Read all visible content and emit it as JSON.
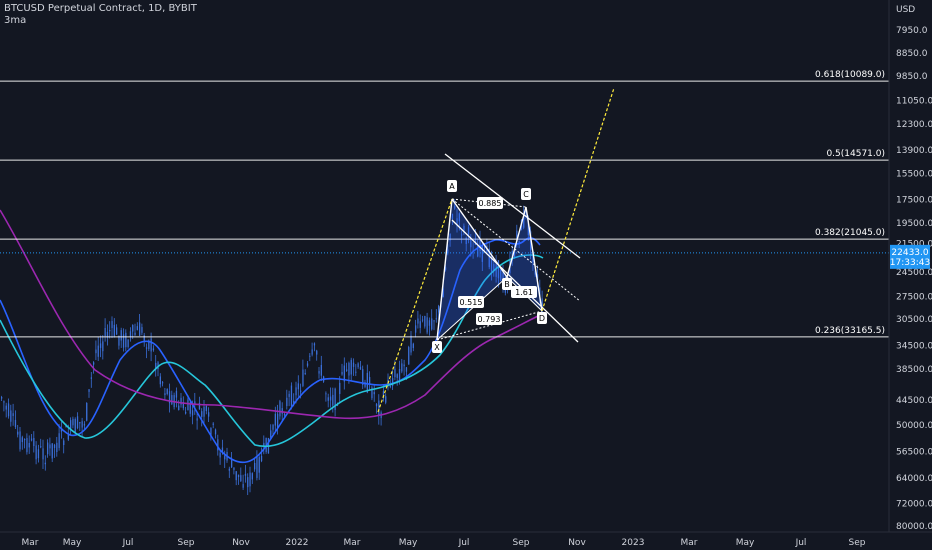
{
  "header": {
    "symbol_line": "BTCUSD Perpetual Contract, 1D, BYBIT",
    "indicator_line": "3ma"
  },
  "colors": {
    "background": "#131722",
    "axis_text": "#d1d4dc",
    "candle_up": "#3b6fd8",
    "ma_fast": "#2962ff",
    "ma_mid": "#26c6da",
    "ma_slow": "#9c27b0",
    "harmonic": "#ffffff",
    "trend_line": "#ffeb3b",
    "price_line": "#2196f3"
  },
  "chart_data": {
    "type": "line",
    "title": "BTCUSD Perpetual Contract, 1D, BYBIT",
    "y_axis": {
      "unit": "USD",
      "scale": "log",
      "inverted": true,
      "ticks": [
        "7950.0",
        "8850.0",
        "9850.0",
        "11050.0",
        "12300.0",
        "13900.0",
        "15500.0",
        "17500.0",
        "19500.0",
        "21500.0",
        "24500.0",
        "27500.0",
        "30500.0",
        "34500.0",
        "38500.0",
        "44500.0",
        "50000.0",
        "56500.0",
        "64000.0",
        "72000.0",
        "80000.0"
      ]
    },
    "x_axis": {
      "ticks": [
        "Mar",
        "May",
        "Jul",
        "Sep",
        "Nov",
        "2022",
        "Mar",
        "May",
        "Jul",
        "Sep",
        "Nov",
        "2023",
        "Mar",
        "May",
        "Jul",
        "Sep"
      ]
    },
    "current_price": {
      "value": "22433.0",
      "countdown": "17:33:43"
    },
    "fib_levels": [
      {
        "label": "0.618(10089.0)",
        "value": 10089.0
      },
      {
        "label": "0.5(14571.0)",
        "value": 14571.0
      },
      {
        "label": "0.382(21045.0)",
        "value": 21045.0
      },
      {
        "label": "0.236(33165.5)",
        "value": 33165.5
      }
    ],
    "harmonic_pattern": {
      "points": [
        {
          "label": "X",
          "value": 34500
        },
        {
          "label": "A",
          "value": 17800
        },
        {
          "label": "B",
          "value": 25500
        },
        {
          "label": "C",
          "value": 17600
        },
        {
          "label": "D",
          "value": 30500
        }
      ],
      "ratios": [
        "0.885",
        "0.515",
        "1.61",
        "0.793"
      ]
    }
  }
}
